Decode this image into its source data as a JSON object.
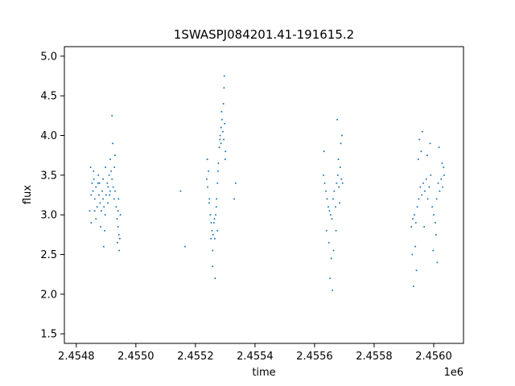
{
  "chart_data": {
    "type": "scatter",
    "title": "1SWASPJ084201.41-191615.2",
    "xlabel": "time",
    "ylabel": "flux",
    "x_offset_label": "1e6",
    "xlim": [
      2454760,
      2456100
    ],
    "ylim": [
      1.38,
      5.12
    ],
    "x_ticks": [
      2454800,
      2455000,
      2455200,
      2455400,
      2455600,
      2455800,
      2456000
    ],
    "x_tick_labels": [
      "2.4548",
      "2.4550",
      "2.4552",
      "2.4554",
      "2.4556",
      "2.4558",
      "2.4560"
    ],
    "y_ticks": [
      1.5,
      2.0,
      2.5,
      3.0,
      3.5,
      4.0,
      4.5,
      5.0
    ],
    "y_tick_labels": [
      "1.5",
      "2.0",
      "2.5",
      "3.0",
      "3.5",
      "4.0",
      "4.5",
      "5.0"
    ],
    "grid": false,
    "marker_color": "#1f77b4",
    "series": [
      {
        "x": [
          2454845,
          2454850,
          2454853,
          2454856,
          2454859,
          2454862,
          2454866,
          2454870,
          2454873,
          2454876,
          2454880,
          2454884,
          2454887,
          2454890,
          2454893,
          2454897,
          2454900,
          2454904,
          2454907,
          2454910,
          2454914,
          2454917,
          2454920,
          2454924,
          2454927,
          2454930,
          2454934,
          2454937,
          2454940,
          2454943,
          2454946,
          2454948,
          2454850,
          2454858,
          2454866,
          2454874,
          2454882,
          2454890,
          2454898,
          2454906,
          2454914,
          2454922,
          2454930,
          2454938,
          2454944,
          2454848,
          2454862,
          2454878,
          2454895,
          2454912,
          2454928,
          2454942,
          2454892,
          2454920,
          2454940
        ],
        "y": [
          3.05,
          3.25,
          3.4,
          3.3,
          3.45,
          3.2,
          3.35,
          3.1,
          3.4,
          3.25,
          3.15,
          3.05,
          3.3,
          3.2,
          3.1,
          3.0,
          3.25,
          3.4,
          3.35,
          3.5,
          3.3,
          3.55,
          3.45,
          3.35,
          3.2,
          3.3,
          3.1,
          2.95,
          2.85,
          2.75,
          2.7,
          3.0,
          2.9,
          3.55,
          2.95,
          3.5,
          2.85,
          3.45,
          3.6,
          3.15,
          3.7,
          3.9,
          3.75,
          2.65,
          2.55,
          3.6,
          3.05,
          3.4,
          2.8,
          3.25,
          3.6,
          3.2,
          2.6,
          4.25,
          3.05
        ]
      },
      {
        "x": [
          2455238,
          2455241,
          2455244,
          2455247,
          2455250,
          2455253,
          2455256,
          2455259,
          2455262,
          2455265,
          2455268,
          2455271,
          2455274,
          2455277,
          2455280,
          2455283,
          2455286,
          2455289,
          2455292,
          2455295,
          2455298,
          2455301,
          2455240,
          2455246,
          2455252,
          2455258,
          2455264,
          2455270,
          2455276,
          2455282,
          2455288,
          2455294,
          2455300,
          2455258,
          2455266,
          2455274,
          2455286,
          2455296,
          2455297,
          2455150,
          2455165,
          2455335,
          2455330
        ],
        "y": [
          3.45,
          3.35,
          3.55,
          3.2,
          3.0,
          2.9,
          2.8,
          2.75,
          2.9,
          2.7,
          3.0,
          3.2,
          3.4,
          3.65,
          3.85,
          4.0,
          4.1,
          4.2,
          4.05,
          3.95,
          4.15,
          3.8,
          3.7,
          3.15,
          2.7,
          2.55,
          2.95,
          3.1,
          3.55,
          3.95,
          4.3,
          4.4,
          3.7,
          2.35,
          2.2,
          2.8,
          3.9,
          4.6,
          4.75,
          3.3,
          2.6,
          3.4,
          3.2
        ]
      },
      {
        "x": [
          2455630,
          2455634,
          2455638,
          2455642,
          2455646,
          2455650,
          2455654,
          2455658,
          2455662,
          2455666,
          2455670,
          2455674,
          2455678,
          2455682,
          2455686,
          2455690,
          2455694,
          2455632,
          2455640,
          2455648,
          2455656,
          2455664,
          2455672,
          2455680,
          2455688,
          2455692,
          2455652,
          2455660,
          2455676,
          2455684
        ],
        "y": [
          3.5,
          3.4,
          3.3,
          3.2,
          3.1,
          3.05,
          3.0,
          2.95,
          3.2,
          3.3,
          3.1,
          3.4,
          3.5,
          3.35,
          3.6,
          3.45,
          3.4,
          3.8,
          2.8,
          2.65,
          2.45,
          2.55,
          2.8,
          3.7,
          3.9,
          4.0,
          2.2,
          2.05,
          4.2,
          3.15
        ]
      },
      {
        "x": [
          2455925,
          2455930,
          2455935,
          2455940,
          2455945,
          2455950,
          2455955,
          2455960,
          2455965,
          2455970,
          2455975,
          2455980,
          2455985,
          2455990,
          2455995,
          2456000,
          2456005,
          2456010,
          2456015,
          2456020,
          2456025,
          2456030,
          2456035,
          2455928,
          2455938,
          2455948,
          2455958,
          2455968,
          2455978,
          2455988,
          2455998,
          2456008,
          2456018,
          2456028,
          2456033,
          2455942,
          2455952,
          2455932,
          2455962,
          2456012
        ],
        "y": [
          2.85,
          2.95,
          3.0,
          2.9,
          3.1,
          3.2,
          3.35,
          3.25,
          3.4,
          3.3,
          3.45,
          3.2,
          3.35,
          3.5,
          3.1,
          3.0,
          2.9,
          3.2,
          3.4,
          3.3,
          3.45,
          3.35,
          3.5,
          2.5,
          2.6,
          3.7,
          3.8,
          2.85,
          3.75,
          3.9,
          2.55,
          2.75,
          3.85,
          3.65,
          3.6,
          2.3,
          3.95,
          2.1,
          4.05,
          2.4
        ]
      }
    ]
  }
}
